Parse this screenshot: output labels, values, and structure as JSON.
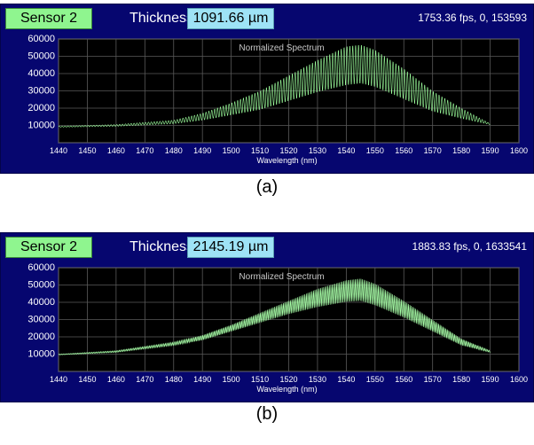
{
  "panels": [
    {
      "id": "a",
      "sensor_label": "Sensor 2",
      "thickness_label": "Thickness",
      "thickness_value": "1091.66 µm",
      "fps_text": "1753.36 fps, 0, 153593",
      "plot_title": "Normalized Spectrum",
      "x_axis_label": "Wavelength (nm)",
      "caption": "(a)"
    },
    {
      "id": "b",
      "sensor_label": "Sensor 2",
      "thickness_label": "Thickness",
      "thickness_value": "2145.19 µm",
      "fps_text": "1883.83 fps, 0, 1633541",
      "plot_title": "Normalized Spectrum",
      "x_axis_label": "Wavelength (nm)",
      "caption": "(b)"
    }
  ],
  "chart_data": [
    {
      "type": "line",
      "title": "Normalized Spectrum",
      "xlabel": "Wavelength (nm)",
      "ylabel": "",
      "xlim": [
        1440,
        1600
      ],
      "ylim": [
        0,
        60000
      ],
      "x_ticks": [
        1440,
        1450,
        1460,
        1470,
        1480,
        1490,
        1500,
        1510,
        1520,
        1530,
        1540,
        1550,
        1560,
        1570,
        1580,
        1590,
        1600
      ],
      "y_ticks": [
        0,
        10000,
        20000,
        30000,
        40000,
        50000,
        60000
      ],
      "x_tick_labels": [
        "1440",
        "1450",
        "1460",
        "1470",
        "1480",
        "1490",
        "1500",
        "1510",
        "1520",
        "1530",
        "1540",
        "1550",
        "1560",
        "1570",
        "1580",
        "1590",
        "1600"
      ],
      "y_tick_labels": [
        "0",
        "10000",
        "20000",
        "30000",
        "40000",
        "50000",
        "60000"
      ],
      "grid": true,
      "series": [
        {
          "x": [
            1440,
            1460,
            1480,
            1490,
            1500,
            1510,
            1520,
            1530,
            1540,
            1545,
            1550,
            1560,
            1570,
            1580,
            1590
          ],
          "upper": [
            9500,
            10500,
            13000,
            17000,
            23000,
            30000,
            39000,
            48000,
            56000,
            57000,
            54000,
            43000,
            30000,
            20000,
            11000
          ],
          "lower": [
            9000,
            9500,
            11000,
            13000,
            16000,
            19000,
            24000,
            29000,
            33000,
            34000,
            32000,
            25000,
            18000,
            14000,
            10500
          ],
          "fringe_period_nm": 1.0,
          "color": "#9dff9d"
        }
      ]
    },
    {
      "type": "line",
      "title": "Normalized Spectrum",
      "xlabel": "Wavelength (nm)",
      "ylabel": "",
      "xlim": [
        1440,
        1600
      ],
      "ylim": [
        0,
        60000
      ],
      "x_ticks": [
        1440,
        1450,
        1460,
        1470,
        1480,
        1490,
        1500,
        1510,
        1520,
        1530,
        1540,
        1550,
        1560,
        1570,
        1580,
        1590,
        1600
      ],
      "y_ticks": [
        0,
        10000,
        20000,
        30000,
        40000,
        50000,
        60000
      ],
      "x_tick_labels": [
        "1440",
        "1450",
        "1460",
        "1470",
        "1480",
        "1490",
        "1500",
        "1510",
        "1520",
        "1530",
        "1540",
        "1550",
        "1560",
        "1570",
        "1580",
        "1590",
        "1600"
      ],
      "y_tick_labels": [
        "0",
        "10000",
        "20000",
        "30000",
        "40000",
        "50000",
        "60000"
      ],
      "grid": true,
      "series": [
        {
          "x": [
            1440,
            1460,
            1480,
            1490,
            1500,
            1510,
            1520,
            1530,
            1540,
            1545,
            1550,
            1560,
            1570,
            1580,
            1590
          ],
          "upper": [
            10000,
            12000,
            17000,
            21000,
            27000,
            34000,
            41000,
            48000,
            53000,
            54000,
            51000,
            41000,
            30000,
            19000,
            12000
          ],
          "lower": [
            9500,
            11000,
            15000,
            18000,
            23000,
            28000,
            33000,
            37000,
            40000,
            40500,
            38000,
            31000,
            23000,
            15000,
            11000
          ],
          "fringe_period_nm": 0.5,
          "color": "#a8ffa8"
        }
      ]
    }
  ]
}
